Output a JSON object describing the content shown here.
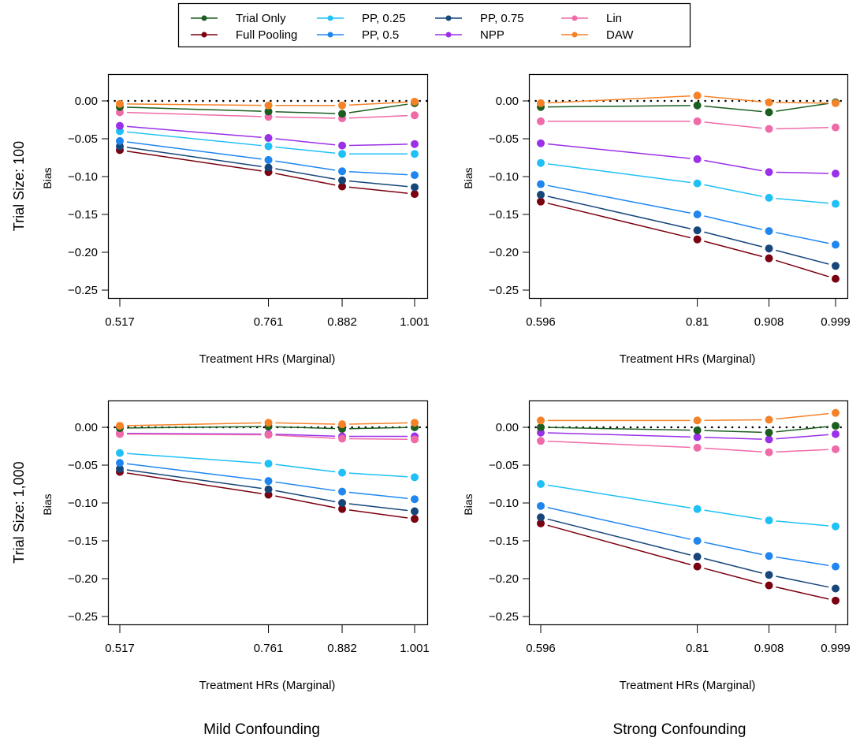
{
  "chart_data": {
    "type": "line",
    "legend": {
      "placement": "top-center",
      "entries": [
        {
          "name": "Trial Only",
          "color": "#1b5e20"
        },
        {
          "name": "Full Pooling",
          "color": "#7b0010"
        },
        {
          "name": "PP, 0.25",
          "color": "#1ec0f5"
        },
        {
          "name": "PP, 0.5",
          "color": "#1f86f0"
        },
        {
          "name": "PP, 0.75",
          "color": "#17467a"
        },
        {
          "name": "NPP",
          "color": "#9a30e8"
        },
        {
          "name": "Lin",
          "color": "#f06aa8"
        },
        {
          "name": "DAW",
          "color": "#f58227"
        }
      ]
    },
    "row_labels": [
      "Trial Size: 100",
      "Trial Size: 1,000"
    ],
    "column_labels": [
      "Mild Confounding",
      "Strong Confounding"
    ],
    "ylabel": "Bias",
    "xlabel": "Treatment HRs (Marginal)",
    "ylim": [
      -0.25,
      0.0
    ],
    "yticks": [
      "0.00",
      "-0.05",
      "-0.10",
      "-0.15",
      "-0.20",
      "-0.25"
    ],
    "reference_line": {
      "y": 0,
      "style": "dotted"
    },
    "panels": [
      {
        "id": "mild-100",
        "row": 0,
        "col": 0,
        "x": [
          0.517,
          0.761,
          0.882,
          1.001
        ],
        "xticks": [
          "0.517",
          "0.761",
          "0.882",
          "1.001"
        ],
        "series": [
          {
            "name": "Trial Only",
            "values": [
              -0.008,
              -0.014,
              -0.017,
              -0.003
            ]
          },
          {
            "name": "Full Pooling",
            "values": [
              -0.065,
              -0.094,
              -0.113,
              -0.123
            ]
          },
          {
            "name": "PP, 0.25",
            "values": [
              -0.04,
              -0.06,
              -0.07,
              -0.07
            ]
          },
          {
            "name": "PP, 0.5",
            "values": [
              -0.053,
              -0.078,
              -0.093,
              -0.098
            ]
          },
          {
            "name": "PP, 0.75",
            "values": [
              -0.06,
              -0.088,
              -0.105,
              -0.114
            ]
          },
          {
            "name": "NPP",
            "values": [
              -0.033,
              -0.049,
              -0.059,
              -0.057
            ]
          },
          {
            "name": "Lin",
            "values": [
              -0.015,
              -0.021,
              -0.023,
              -0.019
            ]
          },
          {
            "name": "DAW",
            "values": [
              -0.004,
              -0.006,
              -0.006,
              -0.001
            ]
          }
        ]
      },
      {
        "id": "strong-100",
        "row": 0,
        "col": 1,
        "x": [
          0.596,
          0.81,
          0.908,
          0.999
        ],
        "xticks": [
          "0.596",
          "0.81",
          "0.908",
          "0.999"
        ],
        "series": [
          {
            "name": "Trial Only",
            "values": [
              -0.008,
              -0.006,
              -0.015,
              -0.002
            ]
          },
          {
            "name": "Full Pooling",
            "values": [
              -0.133,
              -0.183,
              -0.208,
              -0.235
            ]
          },
          {
            "name": "PP, 0.25",
            "values": [
              -0.082,
              -0.109,
              -0.128,
              -0.136
            ]
          },
          {
            "name": "PP, 0.5",
            "values": [
              -0.11,
              -0.15,
              -0.172,
              -0.19
            ]
          },
          {
            "name": "PP, 0.75",
            "values": [
              -0.124,
              -0.171,
              -0.195,
              -0.218
            ]
          },
          {
            "name": "NPP",
            "values": [
              -0.056,
              -0.077,
              -0.094,
              -0.096
            ]
          },
          {
            "name": "Lin",
            "values": [
              -0.027,
              -0.027,
              -0.037,
              -0.035
            ]
          },
          {
            "name": "DAW",
            "values": [
              -0.003,
              0.007,
              -0.002,
              -0.003
            ]
          }
        ]
      },
      {
        "id": "mild-1000",
        "row": 1,
        "col": 0,
        "x": [
          0.517,
          0.761,
          0.882,
          1.001
        ],
        "xticks": [
          "0.517",
          "0.761",
          "0.882",
          "1.001"
        ],
        "series": [
          {
            "name": "Trial Only",
            "values": [
              -0.001,
              0.001,
              -0.002,
              0.0
            ]
          },
          {
            "name": "Full Pooling",
            "values": [
              -0.059,
              -0.089,
              -0.108,
              -0.121
            ]
          },
          {
            "name": "PP, 0.25",
            "values": [
              -0.034,
              -0.048,
              -0.06,
              -0.066
            ]
          },
          {
            "name": "PP, 0.5",
            "values": [
              -0.047,
              -0.071,
              -0.085,
              -0.095
            ]
          },
          {
            "name": "PP, 0.75",
            "values": [
              -0.055,
              -0.082,
              -0.1,
              -0.111
            ]
          },
          {
            "name": "NPP",
            "values": [
              -0.008,
              -0.009,
              -0.012,
              -0.012
            ]
          },
          {
            "name": "Lin",
            "values": [
              -0.009,
              -0.01,
              -0.015,
              -0.016
            ]
          },
          {
            "name": "DAW",
            "values": [
              0.002,
              0.006,
              0.004,
              0.006
            ]
          }
        ]
      },
      {
        "id": "strong-1000",
        "row": 1,
        "col": 1,
        "x": [
          0.596,
          0.81,
          0.908,
          0.999
        ],
        "xticks": [
          "0.596",
          "0.81",
          "0.908",
          "0.999"
        ],
        "series": [
          {
            "name": "Trial Only",
            "values": [
              0.0,
              -0.004,
              -0.007,
              0.002
            ]
          },
          {
            "name": "Full Pooling",
            "values": [
              -0.127,
              -0.184,
              -0.209,
              -0.229
            ]
          },
          {
            "name": "PP, 0.25",
            "values": [
              -0.075,
              -0.108,
              -0.123,
              -0.131
            ]
          },
          {
            "name": "PP, 0.5",
            "values": [
              -0.104,
              -0.15,
              -0.17,
              -0.184
            ]
          },
          {
            "name": "PP, 0.75",
            "values": [
              -0.119,
              -0.171,
              -0.195,
              -0.213
            ]
          },
          {
            "name": "NPP",
            "values": [
              -0.007,
              -0.013,
              -0.016,
              -0.009
            ]
          },
          {
            "name": "Lin",
            "values": [
              -0.018,
              -0.027,
              -0.033,
              -0.029
            ]
          },
          {
            "name": "DAW",
            "values": [
              0.009,
              0.009,
              0.01,
              0.019
            ]
          }
        ]
      }
    ]
  }
}
